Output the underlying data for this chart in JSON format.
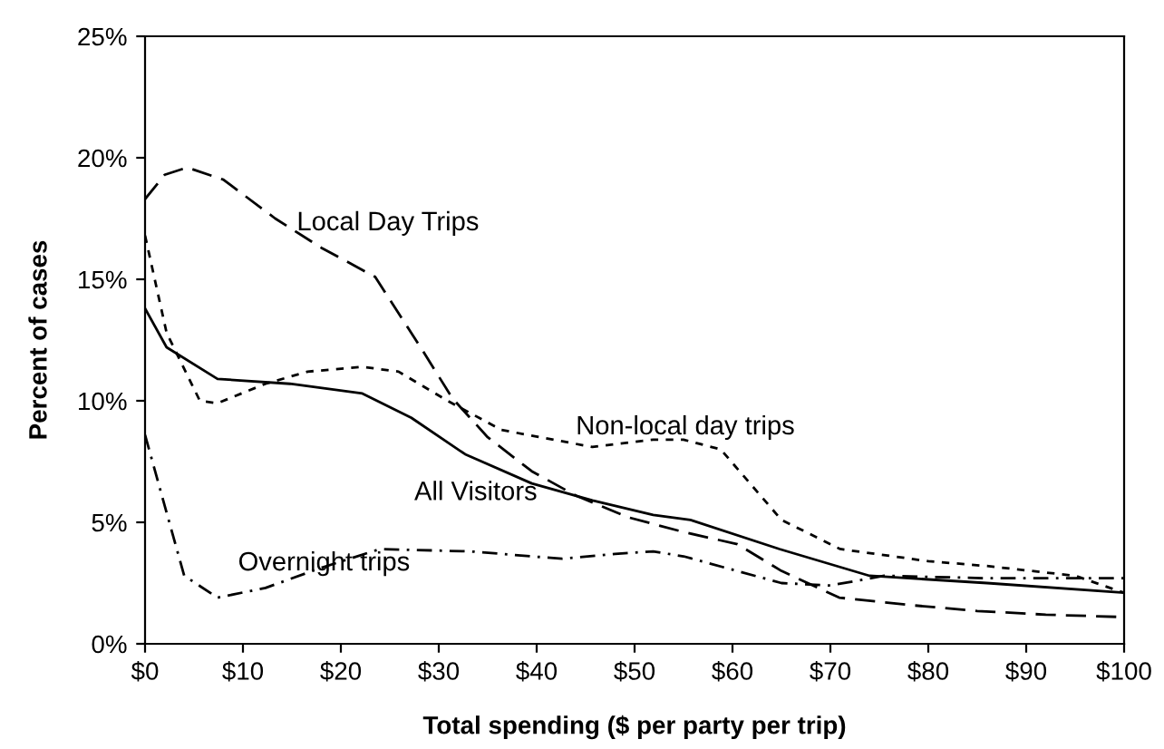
{
  "chart_data": {
    "type": "line",
    "xlabel": "Total spending ($ per party per trip)",
    "ylabel": "Percent of cases",
    "xlim": [
      0,
      100
    ],
    "ylim": [
      0,
      25
    ],
    "xticks": [
      {
        "value": 0,
        "label": "$0"
      },
      {
        "value": 10,
        "label": "$10"
      },
      {
        "value": 20,
        "label": "$20"
      },
      {
        "value": 30,
        "label": "$30"
      },
      {
        "value": 40,
        "label": "$40"
      },
      {
        "value": 50,
        "label": "$50"
      },
      {
        "value": 60,
        "label": "$60"
      },
      {
        "value": 70,
        "label": "$70"
      },
      {
        "value": 80,
        "label": "$80"
      },
      {
        "value": 90,
        "label": "$90"
      },
      {
        "value": 100,
        "label": "$100"
      }
    ],
    "yticks": [
      {
        "value": 0,
        "label": "0%"
      },
      {
        "value": 5,
        "label": "5%"
      },
      {
        "value": 10,
        "label": "10%"
      },
      {
        "value": 15,
        "label": "15%"
      },
      {
        "value": 20,
        "label": "20%"
      },
      {
        "value": 25,
        "label": "25%"
      }
    ],
    "grid": false,
    "legend": false,
    "marker": "none",
    "series": [
      {
        "name": "Local Day Trips",
        "color": "#000000",
        "line_style": "dashed",
        "x": [
          0,
          2,
          4.3,
          8,
          13.3,
          18,
          23.5,
          28.3,
          31.4,
          35,
          39.5,
          44,
          49.4,
          55,
          60.5,
          65,
          70.9,
          78,
          85,
          92,
          100
        ],
        "values": [
          18.3,
          19.3,
          19.6,
          19.1,
          17.5,
          16.3,
          15.1,
          12.1,
          10.1,
          8.5,
          7.1,
          6.1,
          5.2,
          4.6,
          4.1,
          3.0,
          1.9,
          1.6,
          1.35,
          1.2,
          1.1
        ]
      },
      {
        "name": "Non-local day trips",
        "color": "#000000",
        "line_style": "dotted",
        "x": [
          0,
          2.2,
          5.6,
          7.4,
          12.3,
          16.6,
          22.2,
          25.9,
          30.9,
          36.4,
          45.7,
          51.9,
          55,
          58.8,
          65,
          71,
          80,
          86,
          95,
          100
        ],
        "values": [
          16.8,
          12.8,
          10.0,
          9.9,
          10.7,
          11.2,
          11.4,
          11.2,
          10.0,
          8.8,
          8.1,
          8.4,
          8.4,
          8.0,
          5.1,
          3.9,
          3.4,
          3.2,
          2.8,
          2.1
        ]
      },
      {
        "name": "All Visitors",
        "color": "#000000",
        "line_style": "solid",
        "x": [
          0,
          2.2,
          7.4,
          14.8,
          22.2,
          27.2,
          32.7,
          39.5,
          45.7,
          51.9,
          55.7,
          64.8,
          74,
          86,
          100
        ],
        "values": [
          13.8,
          12.2,
          10.9,
          10.7,
          10.3,
          9.3,
          7.8,
          6.6,
          5.9,
          5.3,
          5.1,
          3.9,
          2.8,
          2.5,
          2.1
        ]
      },
      {
        "name": "Overnight trips",
        "color": "#000000",
        "line_style": "dashdot",
        "x": [
          0,
          2.2,
          4,
          7.4,
          12.3,
          17.8,
          24,
          33.3,
          42.6,
          48,
          51.9,
          55,
          65,
          70,
          75.5,
          86,
          100
        ],
        "values": [
          8.6,
          5.4,
          2.8,
          1.9,
          2.3,
          3.1,
          3.9,
          3.8,
          3.5,
          3.7,
          3.8,
          3.6,
          2.5,
          2.4,
          2.8,
          2.7,
          2.7
        ]
      }
    ]
  }
}
